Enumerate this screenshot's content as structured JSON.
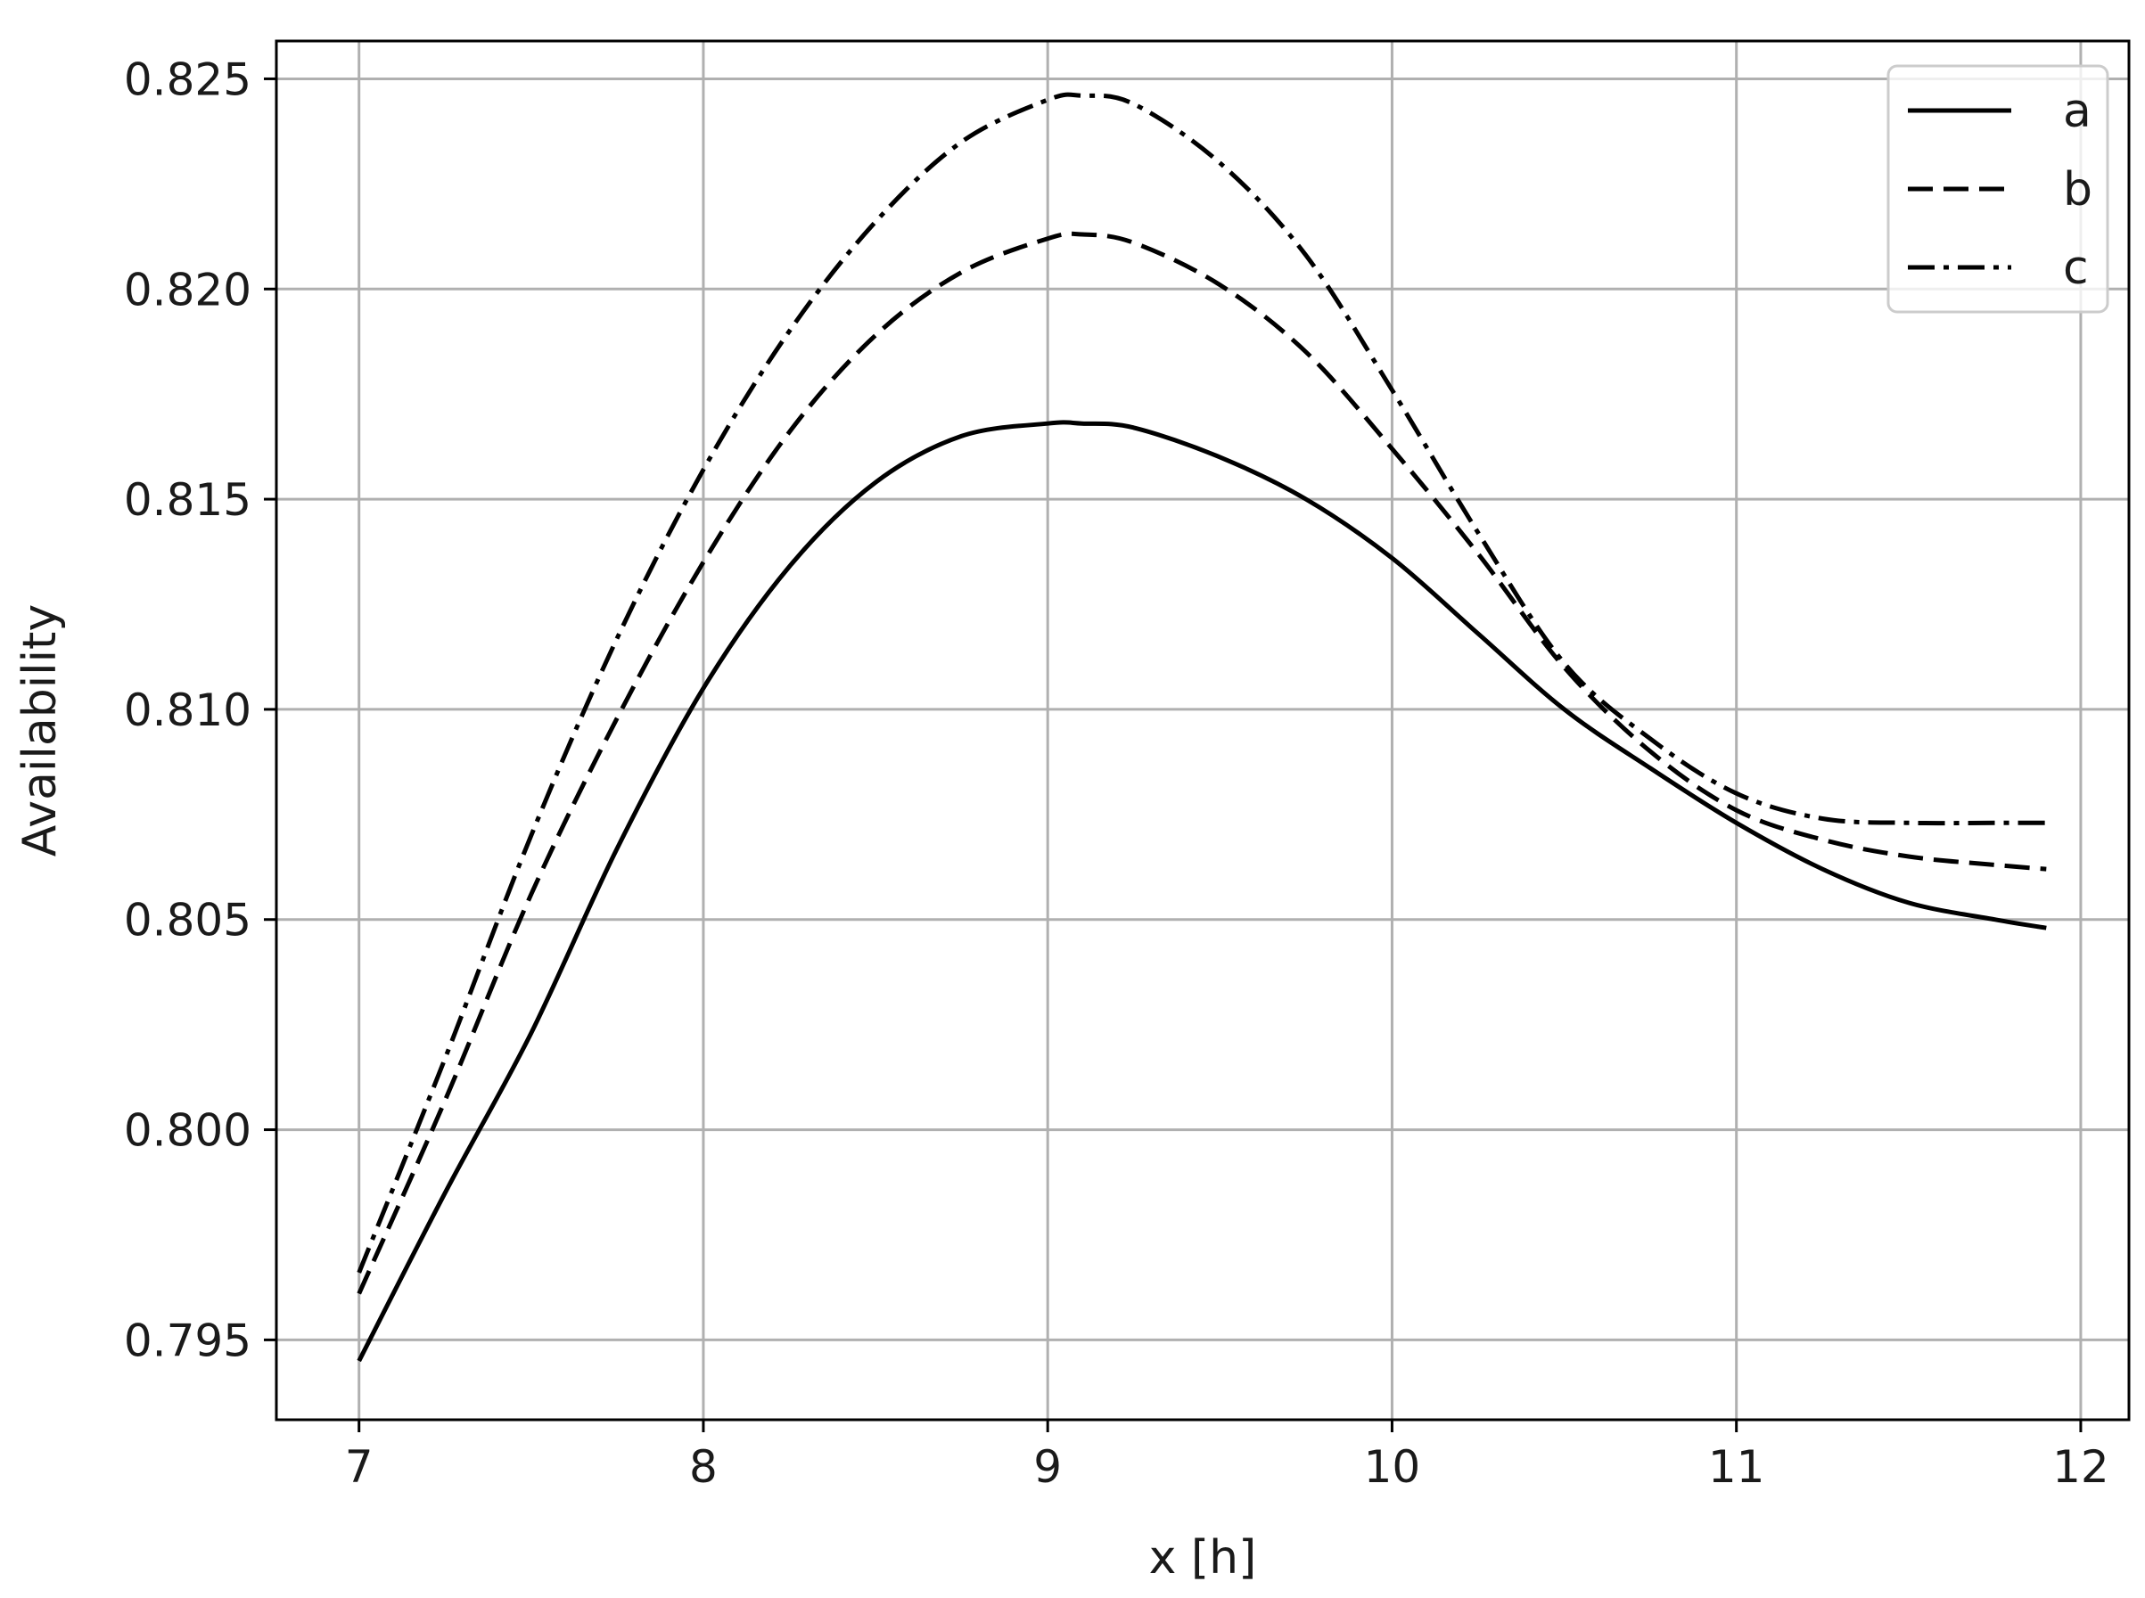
{
  "chart_data": {
    "type": "line",
    "xlabel": "x [h]",
    "ylabel": "Availability",
    "xlim": [
      6.76,
      12.14
    ],
    "ylim": [
      0.7931,
      0.8259
    ],
    "xticks": [
      7,
      8,
      9,
      10,
      11,
      12
    ],
    "xtick_labels": [
      "7",
      "8",
      "9",
      "10",
      "11",
      "12"
    ],
    "yticks": [
      0.795,
      0.8,
      0.805,
      0.81,
      0.815,
      0.82,
      0.825
    ],
    "ytick_labels": [
      "0.795",
      "0.800",
      "0.805",
      "0.810",
      "0.815",
      "0.820",
      "0.825"
    ],
    "grid": true,
    "legend_position": "top-right",
    "x": [
      7.0,
      7.25,
      7.5,
      7.75,
      8.0,
      8.25,
      8.5,
      8.75,
      9.0,
      9.1,
      9.25,
      9.5,
      9.75,
      10.0,
      10.25,
      10.5,
      10.75,
      11.0,
      11.25,
      11.5,
      11.75,
      11.9
    ],
    "series": [
      {
        "name": "a",
        "style": "solid",
        "values": [
          0.7945,
          0.7985,
          0.8023,
          0.8067,
          0.8105,
          0.8134,
          0.8154,
          0.8165,
          0.8168,
          0.8168,
          0.8167,
          0.816,
          0.815,
          0.8136,
          0.8118,
          0.81,
          0.8086,
          0.8073,
          0.8062,
          0.8054,
          0.805,
          0.8048
        ]
      },
      {
        "name": "b",
        "style": "dashed",
        "values": [
          0.7961,
          0.8007,
          0.8056,
          0.8098,
          0.8135,
          0.8166,
          0.8189,
          0.8204,
          0.8212,
          0.8213,
          0.8211,
          0.8201,
          0.8185,
          0.8162,
          0.8137,
          0.811,
          0.809,
          0.8076,
          0.8069,
          0.8065,
          0.8063,
          0.8062
        ]
      },
      {
        "name": "c",
        "style": "dashdot",
        "values": [
          0.7966,
          0.8017,
          0.807,
          0.8117,
          0.8157,
          0.819,
          0.8216,
          0.8235,
          0.8245,
          0.8246,
          0.8244,
          0.823,
          0.8208,
          0.8176,
          0.8142,
          0.8111,
          0.8093,
          0.808,
          0.8074,
          0.8073,
          0.8073,
          0.8073
        ]
      }
    ]
  }
}
